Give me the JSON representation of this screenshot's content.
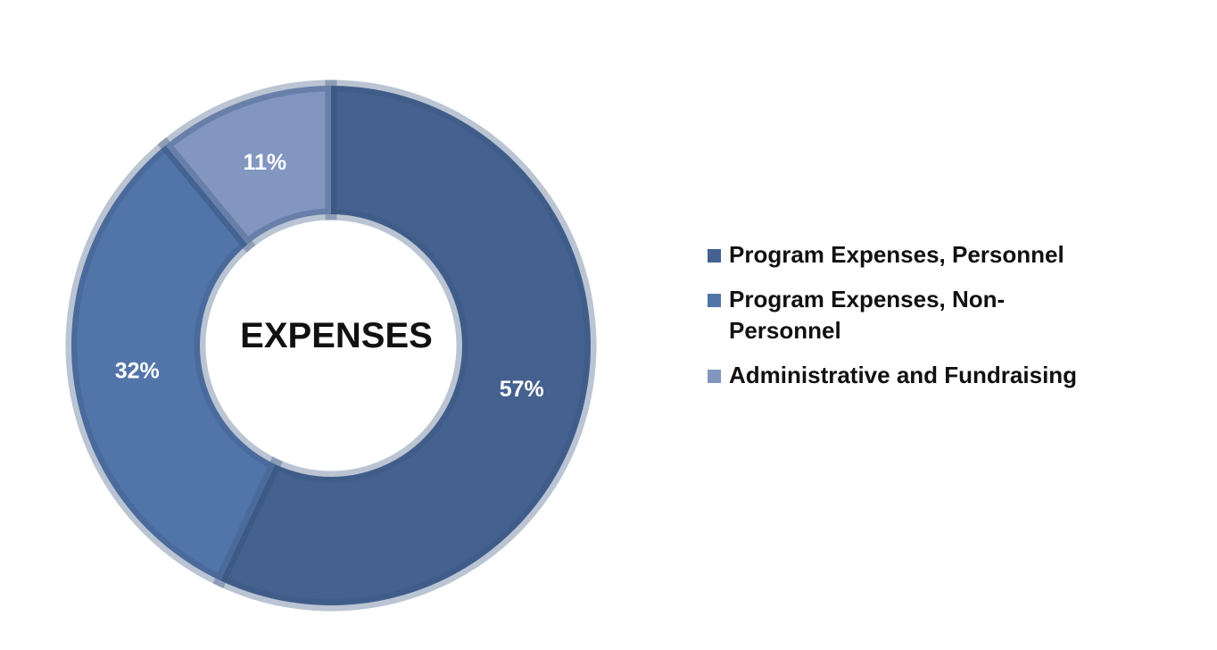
{
  "chart_data": {
    "type": "pie",
    "style": "donut",
    "center_label": "EXPENSES",
    "categories": [
      "Program Expenses, Personnel",
      "Program Expenses, Non-Personnel",
      "Administrative and Fundraising"
    ],
    "values": [
      57,
      32,
      11
    ],
    "value_labels": [
      "57%",
      "32%",
      "11%"
    ],
    "colors": [
      "#44618f",
      "#5275a9",
      "#8296c0"
    ],
    "legend_position": "right"
  }
}
